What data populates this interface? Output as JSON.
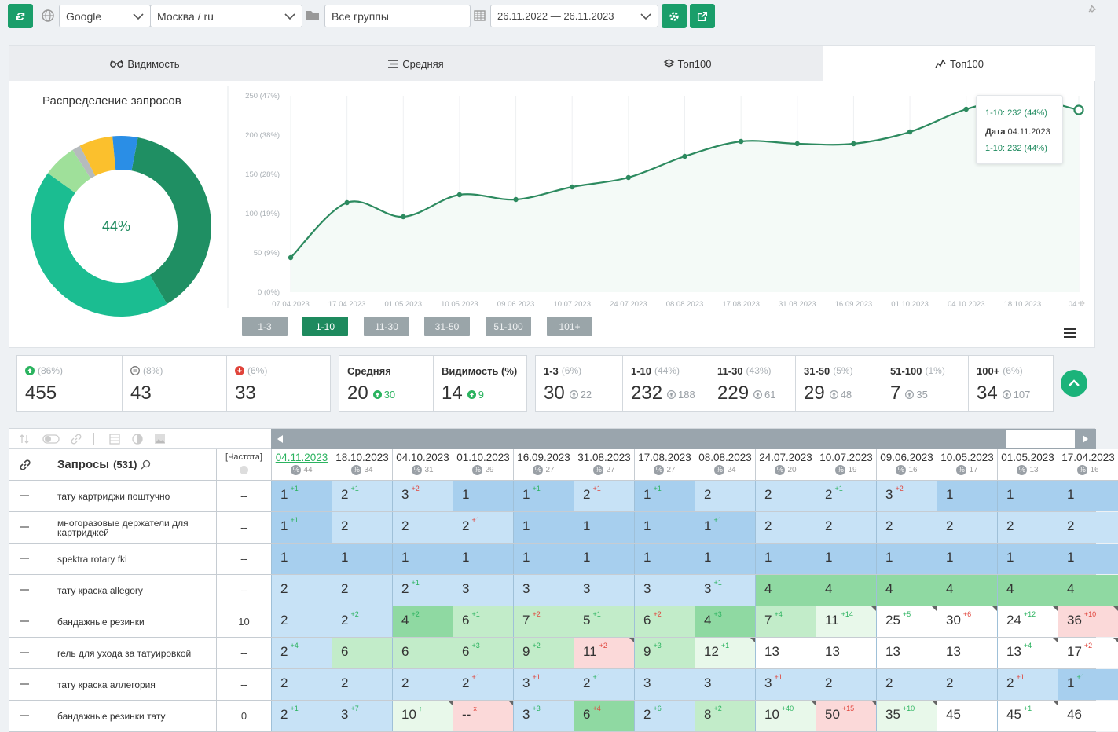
{
  "toolbar": {
    "search_engine": "Google",
    "region": "Москва / ru",
    "group": "Все группы",
    "date_range": "26.11.2022 — 26.11.2023"
  },
  "tabs": [
    {
      "label": "Видимость",
      "icon": "glasses-icon",
      "active": false
    },
    {
      "label": "Средняя",
      "icon": "list-icon",
      "active": false
    },
    {
      "label": "Топ100",
      "icon": "layers-icon",
      "active": false
    },
    {
      "label": "Топ100",
      "icon": "chart-line-icon",
      "active": true
    }
  ],
  "donut": {
    "title": "Распределение запросов",
    "center_label": "44%",
    "colors": [
      "#1f8f63",
      "#1bbd91",
      "#9fe09a",
      "#b6bbbd",
      "#fbc02d",
      "#2a8ee6"
    ]
  },
  "chart_data": {
    "type": "area",
    "title": "",
    "y_ticks": [
      "0 (0%)",
      "50 (9%)",
      "100 (19%)",
      "150 (28%)",
      "200 (38%)",
      "250 (47%)"
    ],
    "ylim": [
      0,
      250
    ],
    "x": [
      "07.04.2023",
      "17.04.2023",
      "01.05.2023",
      "10.05.2023",
      "09.06.2023",
      "10.07.2023",
      "24.07.2023",
      "08.08.2023",
      "17.08.2023",
      "31.08.2023",
      "16.09.2023",
      "01.10.2023",
      "04.10.2023",
      "18.10.2023",
      "04.1..."
    ],
    "series": [
      {
        "name": "1-10",
        "values": [
          44,
          114,
          96,
          124,
          118,
          134,
          146,
          173,
          192,
          189,
          189,
          204,
          233,
          247,
          232
        ]
      }
    ],
    "tooltip": {
      "line1": "1-10: 232 (44%)",
      "date_label": "Дата",
      "date_value": "04.11.2023",
      "line3": "1-10: 232 (44%)"
    },
    "line_color": "#2c8a5f"
  },
  "range_buttons": [
    {
      "label": "1-3",
      "on": false
    },
    {
      "label": "1-10",
      "on": true
    },
    {
      "label": "11-30",
      "on": false
    },
    {
      "label": "31-50",
      "on": false
    },
    {
      "label": "51-100",
      "on": false
    },
    {
      "label": "101+",
      "on": false
    }
  ],
  "stats": {
    "group1": [
      {
        "icon": "arrow-up-circle-icon",
        "sub": "(86%)",
        "value": "455"
      },
      {
        "icon": "equal-circle-icon",
        "sub": "(8%)",
        "value": "43"
      },
      {
        "icon": "arrow-down-circle-icon",
        "sub": "(6%)",
        "value": "33"
      }
    ],
    "group2": [
      {
        "label": "Средняя",
        "value": "20",
        "delta": "30"
      },
      {
        "label": "Видимость (%)",
        "value": "14",
        "delta": "9"
      }
    ],
    "group3": [
      {
        "label": "1-3",
        "sub": "(6%)",
        "value": "30",
        "delta": "22"
      },
      {
        "label": "1-10",
        "sub": "(44%)",
        "value": "232",
        "delta": "188"
      },
      {
        "label": "11-30",
        "sub": "(43%)",
        "value": "229",
        "delta": "61"
      },
      {
        "label": "31-50",
        "sub": "(5%)",
        "value": "29",
        "delta": "48"
      },
      {
        "label": "51-100",
        "sub": "(1%)",
        "value": "7",
        "delta": "35"
      },
      {
        "label": "100+",
        "sub": "(6%)",
        "value": "34",
        "delta": "107"
      }
    ]
  },
  "table": {
    "queries_label": "Запросы",
    "queries_count": "(531)",
    "freq_label": "[Частота]",
    "dates": [
      {
        "d": "04.11.2023",
        "n": "44"
      },
      {
        "d": "18.10.2023",
        "n": "34"
      },
      {
        "d": "04.10.2023",
        "n": "31"
      },
      {
        "d": "01.10.2023",
        "n": "29"
      },
      {
        "d": "16.09.2023",
        "n": "27"
      },
      {
        "d": "31.08.2023",
        "n": "27"
      },
      {
        "d": "17.08.2023",
        "n": "27"
      },
      {
        "d": "08.08.2023",
        "n": "24"
      },
      {
        "d": "24.07.2023",
        "n": "20"
      },
      {
        "d": "10.07.2023",
        "n": "19"
      },
      {
        "d": "09.06.2023",
        "n": "16"
      },
      {
        "d": "10.05.2023",
        "n": "17"
      },
      {
        "d": "01.05.2023",
        "n": "13"
      },
      {
        "d": "17.04.2023",
        "n": "16"
      }
    ],
    "rows": [
      {
        "q": "тату картриджи поштучно",
        "f": "--",
        "cells": [
          [
            "1",
            "+1",
            "up",
            "blue"
          ],
          [
            "2",
            "+1",
            "up",
            "lblue"
          ],
          [
            "3",
            "+2",
            "dn",
            "lblue"
          ],
          [
            "1",
            "",
            "",
            "blue"
          ],
          [
            "1",
            "+1",
            "up",
            "blue"
          ],
          [
            "2",
            "+1",
            "dn",
            "lblue"
          ],
          [
            "1",
            "+1",
            "up",
            "blue"
          ],
          [
            "2",
            "",
            "",
            "lblue"
          ],
          [
            "2",
            "",
            "",
            "lblue"
          ],
          [
            "2",
            "+1",
            "up",
            "lblue"
          ],
          [
            "3",
            "+2",
            "dn",
            "lblue"
          ],
          [
            "1",
            "",
            "",
            "blue"
          ],
          [
            "1",
            "",
            "",
            "blue"
          ],
          [
            "1",
            "",
            "",
            "blue"
          ]
        ]
      },
      {
        "q": "многоразовые держатели для картриджей",
        "f": "--",
        "cells": [
          [
            "1",
            "+1",
            "up",
            "blue"
          ],
          [
            "2",
            "",
            "",
            "lblue"
          ],
          [
            "2",
            "",
            "",
            "lblue"
          ],
          [
            "2",
            "+1",
            "dn",
            "lblue"
          ],
          [
            "1",
            "",
            "",
            "blue"
          ],
          [
            "1",
            "",
            "",
            "blue"
          ],
          [
            "1",
            "",
            "",
            "blue"
          ],
          [
            "1",
            "+1",
            "up",
            "blue"
          ],
          [
            "2",
            "",
            "",
            "lblue"
          ],
          [
            "2",
            "",
            "",
            "lblue"
          ],
          [
            "2",
            "",
            "",
            "lblue"
          ],
          [
            "2",
            "",
            "",
            "lblue"
          ],
          [
            "2",
            "",
            "",
            "lblue"
          ],
          [
            "2",
            "",
            "",
            "lblue"
          ]
        ]
      },
      {
        "q": "spektra rotary fki",
        "f": "--",
        "cells": [
          [
            "1",
            "",
            "",
            "blue"
          ],
          [
            "1",
            "",
            "",
            "blue"
          ],
          [
            "1",
            "",
            "",
            "blue"
          ],
          [
            "1",
            "",
            "",
            "blue"
          ],
          [
            "1",
            "",
            "",
            "blue"
          ],
          [
            "1",
            "",
            "",
            "blue"
          ],
          [
            "1",
            "",
            "",
            "blue"
          ],
          [
            "1",
            "",
            "",
            "blue"
          ],
          [
            "1",
            "",
            "",
            "blue"
          ],
          [
            "1",
            "",
            "",
            "blue"
          ],
          [
            "1",
            "",
            "",
            "blue"
          ],
          [
            "1",
            "",
            "",
            "blue"
          ],
          [
            "1",
            "",
            "",
            "blue"
          ],
          [
            "1",
            "",
            "",
            "blue"
          ]
        ]
      },
      {
        "q": "тату краска allegory",
        "f": "--",
        "cells": [
          [
            "2",
            "",
            "",
            "lblue"
          ],
          [
            "2",
            "",
            "",
            "lblue"
          ],
          [
            "2",
            "+1",
            "up",
            "lblue"
          ],
          [
            "3",
            "",
            "",
            "lblue"
          ],
          [
            "3",
            "",
            "",
            "lblue"
          ],
          [
            "3",
            "",
            "",
            "lblue"
          ],
          [
            "3",
            "",
            "",
            "lblue"
          ],
          [
            "3",
            "+1",
            "up",
            "lblue"
          ],
          [
            "4",
            "",
            "",
            "green"
          ],
          [
            "4",
            "",
            "",
            "green"
          ],
          [
            "4",
            "",
            "",
            "green"
          ],
          [
            "4",
            "",
            "",
            "green"
          ],
          [
            "4",
            "",
            "",
            "green"
          ],
          [
            "4",
            "",
            "",
            "green"
          ]
        ]
      },
      {
        "q": "бандажные резинки",
        "f": "10",
        "cells": [
          [
            "2",
            "",
            "",
            "lblue"
          ],
          [
            "2",
            "+2",
            "up",
            "lblue"
          ],
          [
            "4",
            "+2",
            "up",
            "green"
          ],
          [
            "6",
            "+1",
            "up",
            "lgreen"
          ],
          [
            "7",
            "+2",
            "dn",
            "lgreen"
          ],
          [
            "5",
            "+1",
            "up",
            "lgreen"
          ],
          [
            "6",
            "+2",
            "dn",
            "lgreen"
          ],
          [
            "4",
            "+3",
            "up",
            "green"
          ],
          [
            "7",
            "+4",
            "up",
            "lgreen"
          ],
          [
            "11",
            "+14",
            "up",
            "vlgreen"
          ],
          [
            "25",
            "+5",
            "up",
            "white"
          ],
          [
            "30",
            "+6",
            "dn",
            "white"
          ],
          [
            "24",
            "+12",
            "up",
            "white"
          ],
          [
            "36",
            "+10",
            "dn",
            "pink"
          ]
        ]
      },
      {
        "q": "гель для ухода за татуировкой",
        "f": "--",
        "cells": [
          [
            "2",
            "+4",
            "up",
            "lblue"
          ],
          [
            "6",
            "",
            "",
            "lgreen"
          ],
          [
            "6",
            "",
            "",
            "lgreen"
          ],
          [
            "6",
            "+3",
            "up",
            "lgreen"
          ],
          [
            "9",
            "+2",
            "up",
            "lgreen"
          ],
          [
            "11",
            "+2",
            "dn",
            "pink"
          ],
          [
            "9",
            "+3",
            "up",
            "lgreen"
          ],
          [
            "12",
            "+1",
            "up",
            "vlgreen"
          ],
          [
            "13",
            "",
            "",
            "white"
          ],
          [
            "13",
            "",
            "",
            "white"
          ],
          [
            "13",
            "",
            "",
            "white"
          ],
          [
            "13",
            "",
            "",
            "white"
          ],
          [
            "13",
            "+4",
            "up",
            "white"
          ],
          [
            "17",
            "+2",
            "dn",
            "white"
          ]
        ]
      },
      {
        "q": "тату краска аллегория",
        "f": "--",
        "cells": [
          [
            "2",
            "",
            "",
            "lblue"
          ],
          [
            "2",
            "",
            "",
            "lblue"
          ],
          [
            "2",
            "",
            "",
            "lblue"
          ],
          [
            "2",
            "+1",
            "dn",
            "lblue"
          ],
          [
            "3",
            "+1",
            "dn",
            "lblue"
          ],
          [
            "2",
            "+1",
            "up",
            "lblue"
          ],
          [
            "3",
            "",
            "",
            "lblue"
          ],
          [
            "3",
            "",
            "",
            "lblue"
          ],
          [
            "3",
            "+1",
            "dn",
            "lblue"
          ],
          [
            "2",
            "",
            "",
            "lblue"
          ],
          [
            "2",
            "",
            "",
            "lblue"
          ],
          [
            "2",
            "",
            "",
            "lblue"
          ],
          [
            "2",
            "+1",
            "dn",
            "lblue"
          ],
          [
            "1",
            "+1",
            "up",
            "blue"
          ]
        ]
      },
      {
        "q": "бандажные резинки тату",
        "f": "0",
        "cells": [
          [
            "2",
            "+1",
            "up",
            "lblue"
          ],
          [
            "3",
            "+7",
            "up",
            "lblue"
          ],
          [
            "10",
            "↑",
            "up",
            "vlgreen"
          ],
          [
            "--",
            "x",
            "dn",
            "pink"
          ],
          [
            "3",
            "+3",
            "up",
            "lblue"
          ],
          [
            "6",
            "+4",
            "dn",
            "green"
          ],
          [
            "2",
            "+6",
            "up",
            "lblue"
          ],
          [
            "8",
            "+2",
            "up",
            "lgreen"
          ],
          [
            "10",
            "+40",
            "up",
            "vlgreen"
          ],
          [
            "50",
            "+15",
            "dn",
            "pink"
          ],
          [
            "35",
            "+10",
            "up",
            "vlgreen"
          ],
          [
            "45",
            "",
            "",
            "white"
          ],
          [
            "45",
            "+1",
            "up",
            "white"
          ],
          [
            "46",
            "",
            "",
            "white"
          ]
        ]
      }
    ]
  }
}
